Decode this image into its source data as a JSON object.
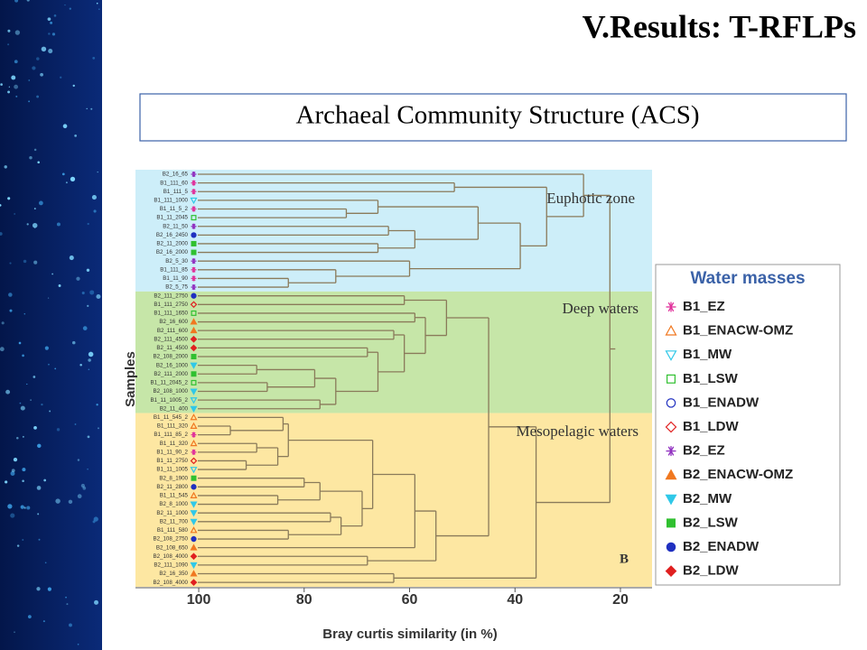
{
  "header": {
    "title": "V.Results: T-RFLPs",
    "subtitle": "Archaeal Community Structure (ACS)"
  },
  "chart_data": {
    "type": "dendrogram",
    "x_label": "Bray curtis similarity (in %)",
    "y_label": "Samples",
    "panel": "B",
    "xlim": [
      112,
      14
    ],
    "xticks": [
      100,
      80,
      60,
      40,
      20
    ],
    "zones": [
      {
        "label": "Euphotic zone",
        "color": "#cdeef9"
      },
      {
        "label": "Deep waters",
        "color": "#c6e6a8"
      },
      {
        "label": "Mesopelagic waters",
        "color": "#fde7a2"
      }
    ],
    "legend": {
      "title": "Water masses",
      "entries": [
        {
          "name": "B1_EZ",
          "color": "#e0309a",
          "shape": "asterisk",
          "filled": false
        },
        {
          "name": "B1_ENACW-OMZ",
          "color": "#f07820",
          "shape": "triangle",
          "filled": false
        },
        {
          "name": "B1_MW",
          "color": "#30c8e8",
          "shape": "down-triangle",
          "filled": false
        },
        {
          "name": "B1_LSW",
          "color": "#30c030",
          "shape": "square",
          "filled": false
        },
        {
          "name": "B1_ENADW",
          "color": "#2030c0",
          "shape": "circle",
          "filled": false
        },
        {
          "name": "B1_LDW",
          "color": "#e02020",
          "shape": "diamond",
          "filled": false
        },
        {
          "name": "B2_EZ",
          "color": "#9030c0",
          "shape": "asterisk",
          "filled": true
        },
        {
          "name": "B2_ENACW-OMZ",
          "color": "#f07820",
          "shape": "triangle",
          "filled": true
        },
        {
          "name": "B2_MW",
          "color": "#30c8e8",
          "shape": "down-triangle",
          "filled": true
        },
        {
          "name": "B2_LSW",
          "color": "#30c030",
          "shape": "square",
          "filled": true
        },
        {
          "name": "B2_ENADW",
          "color": "#2030c0",
          "shape": "circle",
          "filled": true
        },
        {
          "name": "B2_LDW",
          "color": "#e02020",
          "shape": "diamond",
          "filled": true
        }
      ]
    },
    "tree": {
      "similarity": 22,
      "children": [
        {
          "similarity": 27,
          "children": [
            {
              "label": "B2_16_65",
              "mass": "B2_EZ"
            },
            {
              "similarity": 34,
              "children": [
                {
                  "similarity": 51.5,
                  "children": [
                    {
                      "label": "B1_111_60",
                      "mass": "B1_EZ"
                    },
                    {
                      "label": "B1_111_5",
                      "mass": "B1_EZ"
                    }
                  ]
                },
                {
                  "similarity": 39,
                  "children": [
                    {
                      "similarity": 47,
                      "children": [
                        {
                          "similarity": 66,
                          "children": [
                            {
                              "label": "B1_111_1000",
                              "mass": "B1_MW"
                            },
                            {
                              "similarity": 72,
                              "children": [
                                {
                                  "label": "B1_11_5_2",
                                  "mass": "B1_EZ"
                                },
                                {
                                  "label": "B1_11_2045",
                                  "mass": "B1_LSW"
                                }
                              ]
                            }
                          ]
                        },
                        {
                          "similarity": 59,
                          "children": [
                            {
                              "similarity": 64,
                              "children": [
                                {
                                  "label": "B2_11_50",
                                  "mass": "B2_EZ"
                                },
                                {
                                  "label": "B2_16_2450",
                                  "mass": "B2_ENADW"
                                }
                              ]
                            },
                            {
                              "similarity": 66,
                              "children": [
                                {
                                  "label": "B2_11_2000",
                                  "mass": "B2_LSW"
                                },
                                {
                                  "label": "B2_16_2000",
                                  "mass": "B2_LSW"
                                }
                              ]
                            }
                          ]
                        }
                      ]
                    },
                    {
                      "similarity": 60,
                      "children": [
                        {
                          "label": "B2_5_30",
                          "mass": "B2_EZ"
                        },
                        {
                          "similarity": 74,
                          "children": [
                            {
                              "label": "B1_111_85",
                              "mass": "B1_EZ"
                            },
                            {
                              "similarity": 83,
                              "children": [
                                {
                                  "label": "B1_11_90",
                                  "mass": "B1_EZ"
                                },
                                {
                                  "label": "B2_5_75",
                                  "mass": "B2_EZ"
                                }
                              ]
                            }
                          ]
                        }
                      ]
                    }
                  ]
                }
              ]
            }
          ]
        },
        {
          "similarity": 36,
          "children": [
            {
              "similarity": 45,
              "children": [
                {
                  "similarity": 53,
                  "children": [
                    {
                      "similarity": 61,
                      "children": [
                        {
                          "label": "B2_111_2750",
                          "mass": "B2_ENADW"
                        },
                        {
                          "label": "B1_111_2750",
                          "mass": "B1_LDW"
                        }
                      ]
                    },
                    {
                      "similarity": 57,
                      "children": [
                        {
                          "similarity": 59,
                          "children": [
                            {
                              "label": "B1_111_1650",
                              "mass": "B1_LSW"
                            },
                            {
                              "label": "B2_16_600",
                              "mass": "B2_ENACW-OMZ"
                            }
                          ]
                        },
                        {
                          "similarity": 61,
                          "children": [
                            {
                              "similarity": 63,
                              "children": [
                                {
                                  "label": "B2_111_600",
                                  "mass": "B2_ENACW-OMZ"
                                },
                                {
                                  "label": "B2_111_4500",
                                  "mass": "B2_LDW"
                                }
                              ]
                            },
                            {
                              "similarity": 66,
                              "children": [
                                {
                                  "similarity": 68,
                                  "children": [
                                    {
                                      "label": "B2_11_4500",
                                      "mass": "B2_LDW"
                                    },
                                    {
                                      "label": "B2_108_2000",
                                      "mass": "B2_LSW"
                                    }
                                  ]
                                },
                                {
                                  "similarity": 74,
                                  "children": [
                                    {
                                      "similarity": 78,
                                      "children": [
                                        {
                                          "similarity": 89,
                                          "children": [
                                            {
                                              "label": "B2_16_1000",
                                              "mass": "B2_MW"
                                            },
                                            {
                                              "label": "B2_111_2000",
                                              "mass": "B2_LSW"
                                            }
                                          ]
                                        },
                                        {
                                          "similarity": 87,
                                          "children": [
                                            {
                                              "label": "B1_11_2045_2",
                                              "mass": "B1_LSW"
                                            },
                                            {
                                              "label": "B2_108_1000",
                                              "mass": "B2_MW"
                                            }
                                          ]
                                        }
                                      ]
                                    },
                                    {
                                      "similarity": 77,
                                      "children": [
                                        {
                                          "label": "B1_11_1005_2",
                                          "mass": "B1_MW"
                                        },
                                        {
                                          "label": "B2_11_400",
                                          "mass": "B2_MW"
                                        }
                                      ]
                                    }
                                  ]
                                }
                              ]
                            }
                          ]
                        }
                      ]
                    }
                  ]
                },
                {
                  "similarity": 55,
                  "children": [
                    {
                      "similarity": 59,
                      "children": [
                        {
                          "similarity": 67,
                          "children": [
                            {
                              "similarity": 83,
                              "children": [
                                {
                                  "similarity": 84,
                                  "children": [
                                    {
                                      "label": "B1_11_545_2",
                                      "mass": "B1_ENACW-OMZ"
                                    },
                                    {
                                      "similarity": 94,
                                      "children": [
                                        {
                                          "label": "B1_111_320",
                                          "mass": "B1_ENACW-OMZ"
                                        },
                                        {
                                          "label": "B1_111_85_2",
                                          "mass": "B1_EZ"
                                        }
                                      ]
                                    }
                                  ]
                                },
                                {
                                  "similarity": 85,
                                  "children": [
                                    {
                                      "similarity": 89,
                                      "children": [
                                        {
                                          "label": "B1_11_320",
                                          "mass": "B1_ENACW-OMZ"
                                        },
                                        {
                                          "label": "B1_11_90_2",
                                          "mass": "B1_EZ"
                                        }
                                      ]
                                    },
                                    {
                                      "similarity": 91,
                                      "children": [
                                        {
                                          "label": "B1_11_2750",
                                          "mass": "B1_LDW"
                                        },
                                        {
                                          "label": "B1_11_1005",
                                          "mass": "B1_MW"
                                        }
                                      ]
                                    }
                                  ]
                                }
                              ]
                            },
                            {
                              "similarity": 69,
                              "children": [
                                {
                                  "similarity": 77,
                                  "children": [
                                    {
                                      "similarity": 80,
                                      "children": [
                                        {
                                          "label": "B2_8_1900",
                                          "mass": "B2_LSW"
                                        },
                                        {
                                          "label": "B2_11_2800",
                                          "mass": "B2_ENADW"
                                        }
                                      ]
                                    },
                                    {
                                      "similarity": 85,
                                      "children": [
                                        {
                                          "label": "B1_11_545",
                                          "mass": "B1_ENACW-OMZ"
                                        },
                                        {
                                          "label": "B2_8_1000",
                                          "mass": "B2_MW"
                                        }
                                      ]
                                    }
                                  ]
                                },
                                {
                                  "similarity": 73,
                                  "children": [
                                    {
                                      "similarity": 75,
                                      "children": [
                                        {
                                          "label": "B2_11_1000",
                                          "mass": "B2_MW"
                                        },
                                        {
                                          "label": "B2_11_700",
                                          "mass": "B2_MW"
                                        }
                                      ]
                                    },
                                    {
                                      "similarity": 83,
                                      "children": [
                                        {
                                          "label": "B1_111_580",
                                          "mass": "B1_ENACW-OMZ"
                                        },
                                        {
                                          "label": "B2_108_2750",
                                          "mass": "B2_ENADW"
                                        }
                                      ]
                                    }
                                  ]
                                }
                              ]
                            }
                          ]
                        },
                        {
                          "label": "B2_108_650",
                          "mass": "B2_ENACW-OMZ"
                        }
                      ]
                    },
                    {
                      "similarity": 68,
                      "children": [
                        {
                          "label": "B2_108_4000",
                          "mass": "B2_LDW"
                        },
                        {
                          "label": "B2_111_1090",
                          "mass": "B2_MW"
                        }
                      ]
                    }
                  ]
                }
              ]
            },
            {
              "similarity": 63,
              "children": [
                {
                  "label": "B2_16_350",
                  "mass": "B2_ENACW-OMZ"
                },
                {
                  "label": "B2_108_4000",
                  "mass": "B2_LDW"
                }
              ]
            }
          ]
        }
      ]
    }
  }
}
